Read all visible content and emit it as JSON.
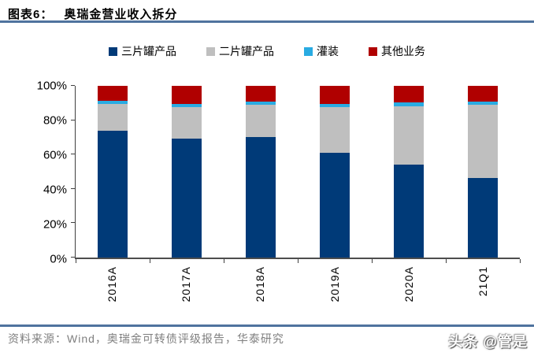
{
  "header": {
    "label": "图表6：",
    "title": "奥瑞金营业收入拆分"
  },
  "legend": [
    {
      "label": "三片罐产品",
      "color": "#003A78"
    },
    {
      "label": "二片罐产品",
      "color": "#BFBFBF"
    },
    {
      "label": "灌装",
      "color": "#29ABE2"
    },
    {
      "label": "其他业务",
      "color": "#B00000"
    }
  ],
  "chart_data": {
    "type": "bar",
    "stacked": true,
    "title": "奥瑞金营业收入拆分",
    "categories": [
      "2016A",
      "2017A",
      "2018A",
      "2019A",
      "2020A",
      "21Q1"
    ],
    "series": [
      {
        "name": "三片罐产品",
        "color": "#003A78",
        "values": [
          74.0,
          69.5,
          70.0,
          61.0,
          54.0,
          46.5
        ]
      },
      {
        "name": "二片罐产品",
        "color": "#BFBFBF",
        "values": [
          15.5,
          18.0,
          19.0,
          26.5,
          34.0,
          42.5
        ]
      },
      {
        "name": "灌装",
        "color": "#29ABE2",
        "values": [
          2.0,
          2.0,
          2.0,
          2.0,
          2.5,
          2.0
        ]
      },
      {
        "name": "其他业务",
        "color": "#B00000",
        "values": [
          8.5,
          10.5,
          9.0,
          10.5,
          9.5,
          9.0
        ]
      }
    ],
    "xlabel": "",
    "ylabel": "",
    "ylim": [
      0,
      100
    ],
    "yticks": [
      "0%",
      "20%",
      "40%",
      "60%",
      "80%",
      "100%"
    ],
    "grid": false,
    "legend_position": "top"
  },
  "footer": {
    "source": "资料来源：Wind，奥瑞金可转债评级报告，华泰研究"
  },
  "watermark": "头条 @管是",
  "colors": {
    "rule_line": "#4F739E",
    "axis": "#404040",
    "source_text": "#7F7F7F"
  }
}
